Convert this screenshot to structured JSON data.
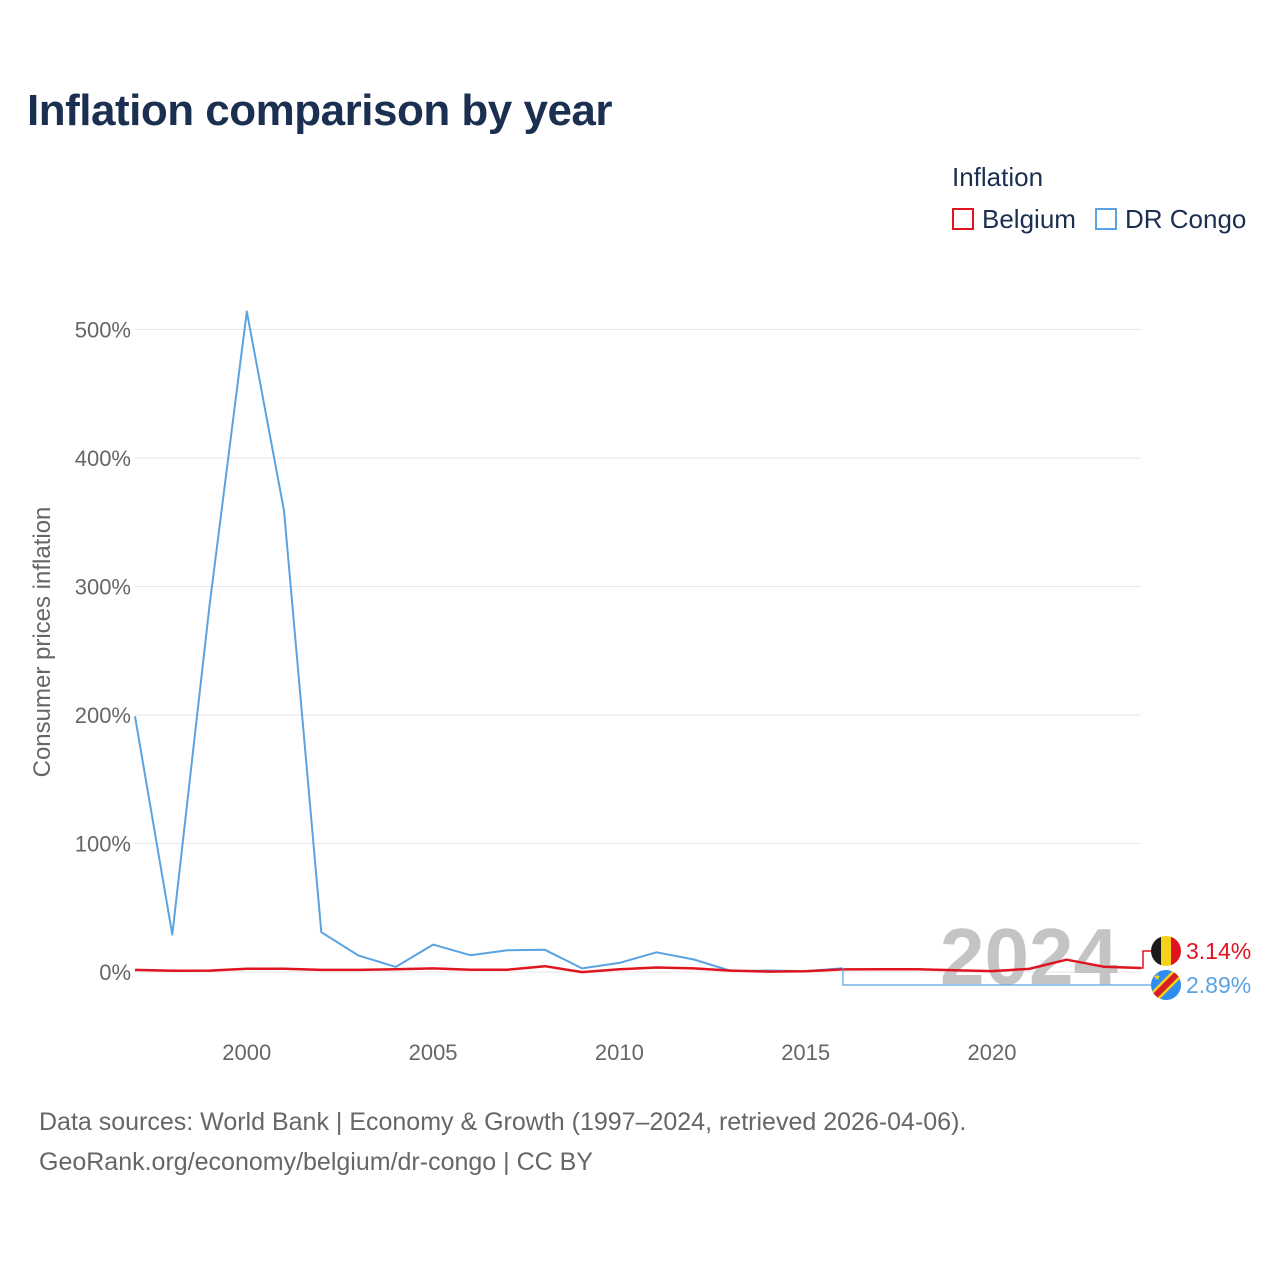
{
  "page": {
    "title": "Inflation comparison by year",
    "source_line1": "Data sources: World Bank | Economy & Growth (1997–2024, retrieved 2026-04-06).",
    "source_line2": "GeoRank.org/economy/belgium/dr-congo | CC BY"
  },
  "legend": {
    "title": "Inflation",
    "items": [
      {
        "label": "Belgium",
        "color": "#e0141e"
      },
      {
        "label": "DR Congo",
        "color": "#5aa3e3"
      }
    ]
  },
  "chart_data": {
    "type": "line",
    "title": "Inflation comparison by year",
    "xlabel": "",
    "ylabel": "Consumer prices inflation",
    "x": [
      1997,
      1998,
      1999,
      2000,
      2001,
      2002,
      2003,
      2004,
      2005,
      2006,
      2007,
      2008,
      2009,
      2010,
      2011,
      2012,
      2013,
      2014,
      2015,
      2016,
      2017,
      2018,
      2019,
      2020,
      2021,
      2022,
      2023,
      2024
    ],
    "xlim": [
      1997,
      2024
    ],
    "ylim": [
      -30,
      540
    ],
    "x_ticks": [
      2000,
      2005,
      2010,
      2015,
      2020
    ],
    "y_ticks": [
      0,
      100,
      200,
      300,
      400,
      500
    ],
    "y_tick_labels": [
      "0%",
      "100%",
      "200%",
      "300%",
      "400%",
      "500%"
    ],
    "grid": true,
    "current_year_label": "2024",
    "series": [
      {
        "name": "Belgium",
        "color": "#e0141e",
        "values": [
          1.6,
          0.9,
          1.1,
          2.5,
          2.5,
          1.6,
          1.6,
          2.1,
          2.8,
          1.8,
          1.8,
          4.5,
          -0.1,
          2.2,
          3.5,
          2.8,
          1.1,
          0.3,
          0.6,
          2.0,
          2.1,
          2.1,
          1.4,
          0.7,
          2.4,
          9.6,
          4.1,
          3.14
        ],
        "end_label": "3.14%"
      },
      {
        "name": "DR Congo",
        "color": "#5aa3e3",
        "values": [
          199,
          29,
          285,
          514,
          359,
          31,
          12.8,
          4.0,
          21.3,
          13.1,
          16.9,
          17.3,
          2.8,
          7.1,
          15.3,
          9.7,
          0.8,
          1.2,
          0.7,
          2.9,
          null,
          null,
          null,
          null,
          null,
          null,
          null,
          2.89
        ],
        "end_label": "2.89%"
      }
    ]
  }
}
